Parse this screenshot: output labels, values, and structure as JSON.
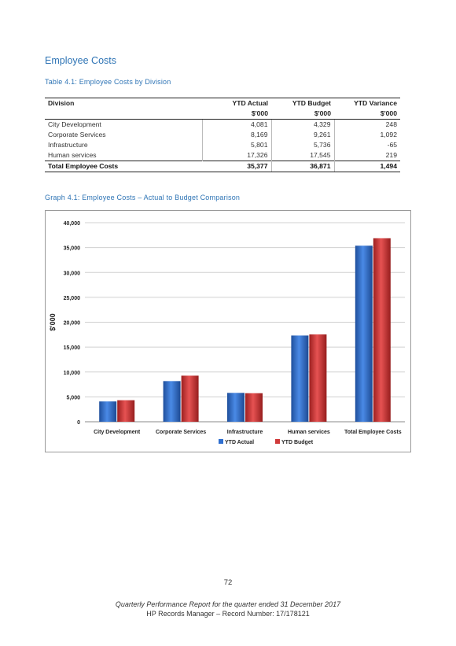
{
  "section_title": "Employee Costs",
  "table_caption": "Table 4.1: Employee Costs by Division",
  "table": {
    "headers": [
      "Division",
      "YTD Actual",
      "YTD Budget",
      "YTD Variance"
    ],
    "units": [
      "",
      "$'000",
      "$'000",
      "$'000"
    ],
    "rows": [
      [
        "City Development",
        "4,081",
        "4,329",
        "248"
      ],
      [
        "Corporate Services",
        "8,169",
        "9,261",
        "1,092"
      ],
      [
        "Infrastructure",
        "5,801",
        "5,736",
        "-65"
      ],
      [
        "Human services",
        "17,326",
        "17,545",
        "219"
      ]
    ],
    "total": [
      "Total Employee Costs",
      "35,377",
      "36,871",
      "1,494"
    ]
  },
  "graph_caption": "Graph 4.1: Employee Costs – Actual to Budget Comparison",
  "chart_data": {
    "type": "bar",
    "categories": [
      "City Development",
      "Corporate Services",
      "Infrastructure",
      "Human services",
      "Total Employee Costs"
    ],
    "series": [
      {
        "name": "YTD Actual",
        "values": [
          4081,
          8169,
          5801,
          17326,
          35377
        ],
        "color": "#2f6fd0"
      },
      {
        "name": "YTD Budget",
        "values": [
          4329,
          9261,
          5736,
          17545,
          36871
        ],
        "color": "#d03a3a"
      }
    ],
    "title": "",
    "xlabel": "",
    "ylabel": "$'000",
    "ylim": [
      0,
      40000
    ],
    "yticks": [
      0,
      5000,
      10000,
      15000,
      20000,
      25000,
      30000,
      35000,
      40000
    ],
    "ytick_labels": [
      "0",
      "5,000",
      "10,000",
      "15,000",
      "20,000",
      "25,000",
      "30,000",
      "35,000",
      "40,000"
    ],
    "grid": true,
    "legend_position": "bottom"
  },
  "page_number": "72",
  "footer": {
    "line1": "Quarterly Performance Report for the quarter ended 31 December 2017",
    "line2": "HP Records Manager – Record Number: 17/178121"
  }
}
